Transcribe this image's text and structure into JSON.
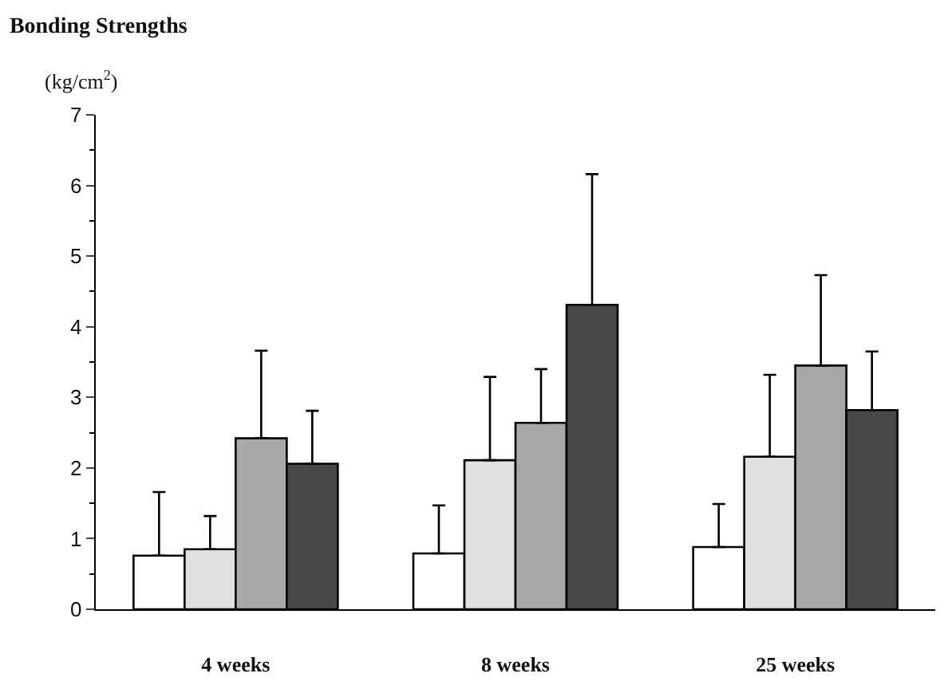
{
  "chart_data": {
    "type": "bar",
    "title": "Bonding Strengths",
    "ylabel": "(kg/cm$^{2}$)",
    "categories": [
      "4 weeks",
      "8 weeks",
      "25 weeks"
    ],
    "series": [
      {
        "color": "#ffffff",
        "values": [
          0.76,
          0.79,
          0.88
        ],
        "errors": [
          [
            0.76,
            1.66
          ],
          [
            0.79,
            1.47
          ],
          [
            0.88,
            1.49
          ]
        ]
      },
      {
        "color": "#e0e0e0",
        "values": [
          0.85,
          2.11,
          2.16
        ],
        "errors": [
          [
            0.85,
            1.32
          ],
          [
            2.11,
            3.29
          ],
          [
            2.16,
            3.32
          ]
        ]
      },
      {
        "color": "#a8a8a8",
        "values": [
          2.42,
          2.64,
          3.45
        ],
        "errors": [
          [
            2.42,
            3.66
          ],
          [
            2.64,
            3.4
          ],
          [
            3.45,
            4.73
          ]
        ]
      },
      {
        "color": "#484848",
        "values": [
          2.06,
          4.31,
          2.82
        ],
        "errors": [
          [
            2.06,
            2.81
          ],
          [
            4.31,
            6.16
          ],
          [
            2.82,
            3.65
          ]
        ]
      }
    ],
    "ylim": [
      0,
      7
    ],
    "yticks": [
      0,
      1,
      2,
      3,
      4,
      5,
      6,
      7
    ]
  }
}
